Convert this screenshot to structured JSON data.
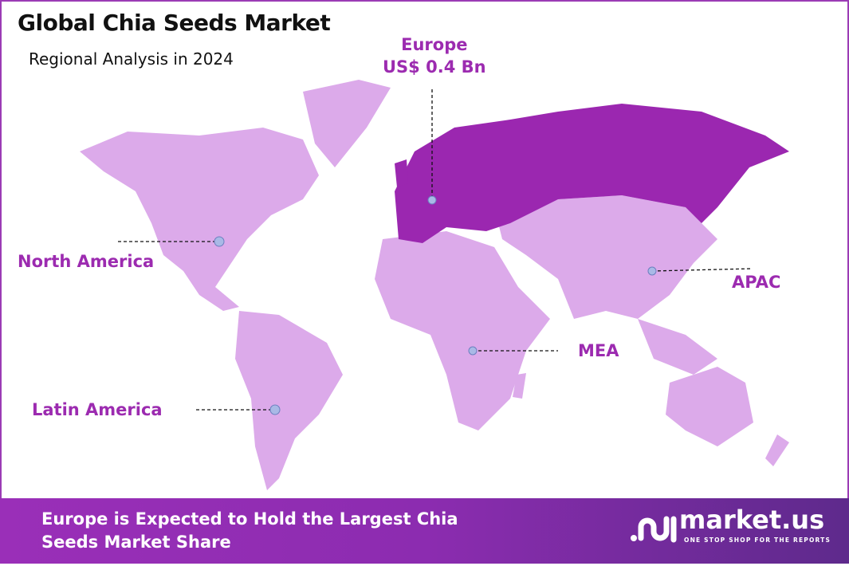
{
  "header": {
    "title": "Global Chia Seeds Market",
    "subtitle": "Regional Analysis in 2024"
  },
  "colors": {
    "region_default": "#dcaaea",
    "region_highlight": "#9b27b0",
    "label": "#9c2bb0",
    "marker": "#a9b9e6"
  },
  "regions": [
    {
      "name": "Europe",
      "value": "US$ 0.4 Bn",
      "highlighted": true
    },
    {
      "name": "North America"
    },
    {
      "name": "APAC"
    },
    {
      "name": "MEA"
    },
    {
      "name": "Latin America"
    }
  ],
  "banner": {
    "line1": "Europe is Expected to Hold the Largest Chia",
    "line2": "Seeds Market Share"
  },
  "logo": {
    "name": "market.us",
    "tagline": "ONE STOP SHOP FOR THE REPORTS"
  }
}
